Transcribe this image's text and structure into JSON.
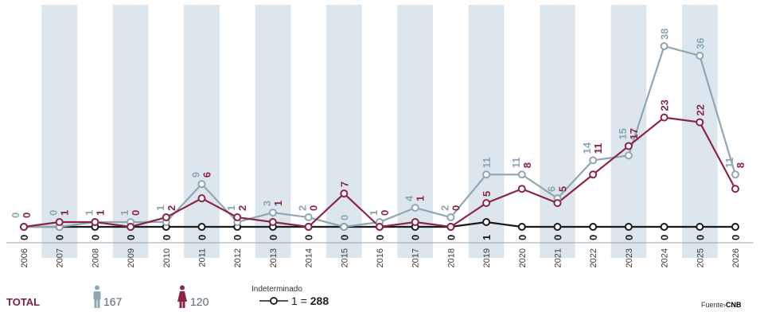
{
  "chart_data": {
    "type": "line",
    "x": [
      "2006",
      "2007",
      "2008",
      "2009",
      "2010",
      "2011",
      "2012",
      "2013",
      "2014",
      "2015",
      "2016",
      "2017",
      "2018",
      "2019",
      "2020",
      "2021",
      "2022",
      "2023",
      "2024",
      "2025",
      "2026"
    ],
    "ylim": [
      0,
      40
    ],
    "grid": false,
    "series": [
      {
        "key": "male",
        "color": "#8fa6b4",
        "values": [
          0,
          0,
          1,
          1,
          1,
          9,
          1,
          3,
          2,
          0,
          1,
          4,
          2,
          11,
          11,
          6,
          14,
          15,
          38,
          36,
          11
        ]
      },
      {
        "key": "female",
        "color": "#8a2547",
        "values": [
          0,
          1,
          1,
          0,
          2,
          6,
          2,
          1,
          0,
          7,
          0,
          1,
          0,
          5,
          8,
          5,
          11,
          17,
          23,
          22,
          8
        ]
      },
      {
        "key": "undetermined",
        "color": "#1a1a1a",
        "values": [
          0,
          0,
          0,
          0,
          0,
          0,
          0,
          0,
          0,
          0,
          0,
          0,
          0,
          1,
          0,
          0,
          0,
          0,
          0,
          0,
          0
        ]
      }
    ]
  },
  "colors": {
    "male": "#8fa6b4",
    "female": "#8a2547",
    "undetermined": "#1a1a1a",
    "band": "#dde6ec"
  },
  "legend": {
    "total_label": "TOTAL",
    "male_icon": "male-figure-icon",
    "male_count": "167",
    "female_icon": "female-figure-icon",
    "female_count": "120",
    "undetermined_label": "Indeterminado",
    "undetermined_prefix": "1 =",
    "undetermined_total": "288"
  },
  "source": {
    "prefix": "Fuente",
    "name": "CNB"
  }
}
